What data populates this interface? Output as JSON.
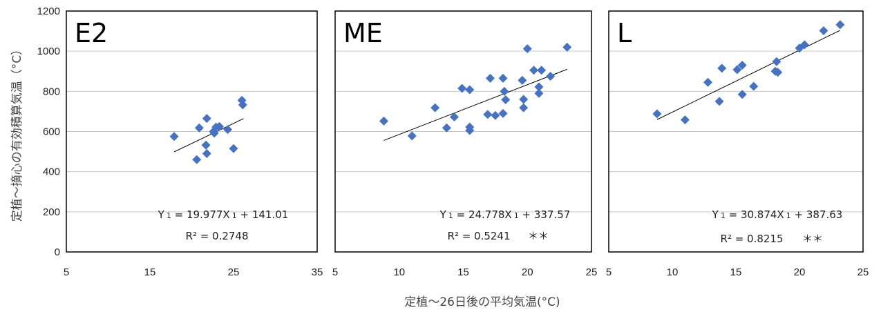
{
  "figure": {
    "ylabel": "定植～摘心の有効積算気温（°C）",
    "xlabel": "定植～26日後の平均気温(°C)"
  },
  "colors": {
    "marker": "#4472C4",
    "grid": "#c8c8c8",
    "frame": "#000000",
    "trend": "#000000"
  },
  "chart_data": [
    {
      "type": "scatter",
      "panel_label": "E2",
      "xlim": [
        5,
        35
      ],
      "ylim": [
        0,
        1200
      ],
      "xticks": [
        5,
        15,
        25,
        35
      ],
      "yticks": [
        0,
        200,
        400,
        600,
        800,
        1000,
        1200
      ],
      "grid": "horizontal",
      "points": [
        [
          17.9,
          575
        ],
        [
          20.6,
          460
        ],
        [
          20.9,
          618
        ],
        [
          21.7,
          532
        ],
        [
          21.8,
          490
        ],
        [
          21.8,
          665
        ],
        [
          22.6,
          600
        ],
        [
          22.7,
          592
        ],
        [
          22.9,
          622
        ],
        [
          23.3,
          625
        ],
        [
          24.3,
          610
        ],
        [
          25.0,
          515
        ],
        [
          26.0,
          755
        ],
        [
          26.1,
          733
        ]
      ],
      "trendline": {
        "x": [
          17.9,
          26.2
        ],
        "slope": 19.977,
        "intercept": 141.01
      },
      "equation": "Y 1 = 19.977X 1 + 141.01",
      "equation_parts": [
        "Y",
        "1",
        " = 19.977X",
        "1",
        " + 141.01"
      ],
      "r2": "R² = 0.2748",
      "significance": ""
    },
    {
      "type": "scatter",
      "panel_label": "ME",
      "xlim": [
        5,
        25
      ],
      "ylim": [
        0,
        1200
      ],
      "xticks": [
        5,
        10,
        15,
        20,
        25
      ],
      "yticks": [
        0,
        200,
        400,
        600,
        800,
        1000,
        1200
      ],
      "grid": "horizontal",
      "points": [
        [
          8.8,
          652
        ],
        [
          11.0,
          578
        ],
        [
          12.8,
          718
        ],
        [
          13.7,
          618
        ],
        [
          14.3,
          672
        ],
        [
          14.9,
          815
        ],
        [
          15.5,
          808
        ],
        [
          15.5,
          622
        ],
        [
          15.5,
          605
        ],
        [
          16.9,
          685
        ],
        [
          17.1,
          865
        ],
        [
          17.5,
          680
        ],
        [
          18.1,
          690
        ],
        [
          18.1,
          865
        ],
        [
          18.2,
          800
        ],
        [
          18.3,
          758
        ],
        [
          19.6,
          855
        ],
        [
          19.7,
          760
        ],
        [
          19.7,
          718
        ],
        [
          20.0,
          1012
        ],
        [
          20.5,
          905
        ],
        [
          20.9,
          822
        ],
        [
          20.9,
          790
        ],
        [
          21.1,
          905
        ],
        [
          21.8,
          875
        ],
        [
          23.1,
          1020
        ]
      ],
      "trendline": {
        "x": [
          8.8,
          23.1
        ],
        "slope": 24.778,
        "intercept": 337.57
      },
      "equation": "Y 1 = 24.778X 1 + 337.57",
      "equation_parts": [
        "Y",
        "1",
        " = 24.778X",
        "1",
        " + 337.57"
      ],
      "r2": "R² = 0.5241",
      "significance": "＊＊"
    },
    {
      "type": "scatter",
      "panel_label": "L",
      "xlim": [
        5,
        25
      ],
      "ylim": [
        0,
        1200
      ],
      "xticks": [
        5,
        10,
        15,
        20,
        25
      ],
      "yticks": [
        0,
        200,
        400,
        600,
        800,
        1000,
        1200
      ],
      "grid": "horizontal",
      "points": [
        [
          8.8,
          688
        ],
        [
          11.0,
          658
        ],
        [
          12.8,
          845
        ],
        [
          13.7,
          750
        ],
        [
          13.9,
          915
        ],
        [
          15.1,
          908
        ],
        [
          15.5,
          785
        ],
        [
          15.5,
          930
        ],
        [
          16.4,
          825
        ],
        [
          18.1,
          900
        ],
        [
          18.2,
          948
        ],
        [
          18.3,
          895
        ],
        [
          20.0,
          1015
        ],
        [
          20.4,
          1032
        ],
        [
          21.9,
          1102
        ],
        [
          23.2,
          1132
        ]
      ],
      "trendline": {
        "x": [
          8.8,
          23.2
        ],
        "slope": 30.874,
        "intercept": 387.63
      },
      "equation": "Y 1 = 30.874X 1 + 387.63",
      "equation_parts": [
        "Y",
        "1",
        " = 30.874X",
        "1",
        " + 387.63"
      ],
      "r2": "R² = 0.8215",
      "significance": "＊＊"
    }
  ]
}
